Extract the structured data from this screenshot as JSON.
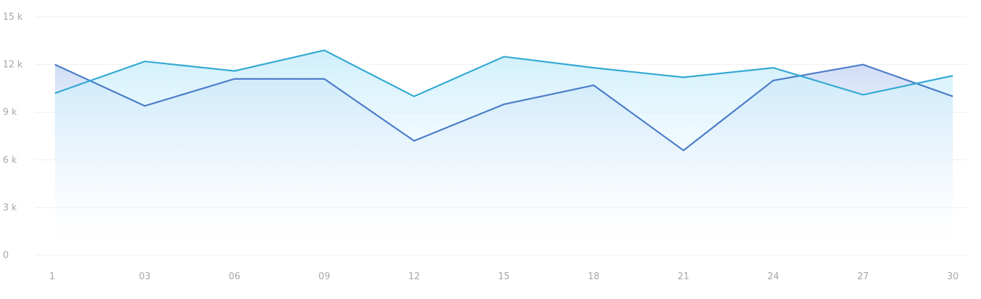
{
  "chart_data": {
    "type": "area",
    "x": [
      "1",
      "03",
      "06",
      "09",
      "12",
      "15",
      "18",
      "21",
      "24",
      "27",
      "30"
    ],
    "ylim": [
      0,
      15000
    ],
    "yticks": [
      {
        "value": 15000,
        "label": "15 k"
      },
      {
        "value": 12000,
        "label": "12 k"
      },
      {
        "value": 9000,
        "label": "9 k"
      },
      {
        "value": 6000,
        "label": "6 k"
      },
      {
        "value": 3000,
        "label": "3 k"
      },
      {
        "value": 0,
        "label": "0"
      }
    ],
    "grid": true,
    "series": [
      {
        "color": "#4a7cc8",
        "fill_top": "#c9d8f6",
        "values": [
          12000,
          9400,
          11100,
          11100,
          7200,
          9500,
          10700,
          6600,
          11000,
          12000,
          10000
        ]
      },
      {
        "color": "#33a9d2",
        "fill_top": "#c6ecfb",
        "values": [
          10200,
          12200,
          11600,
          12900,
          10000,
          12500,
          11800,
          11200,
          11800,
          10100,
          11300
        ]
      }
    ]
  }
}
